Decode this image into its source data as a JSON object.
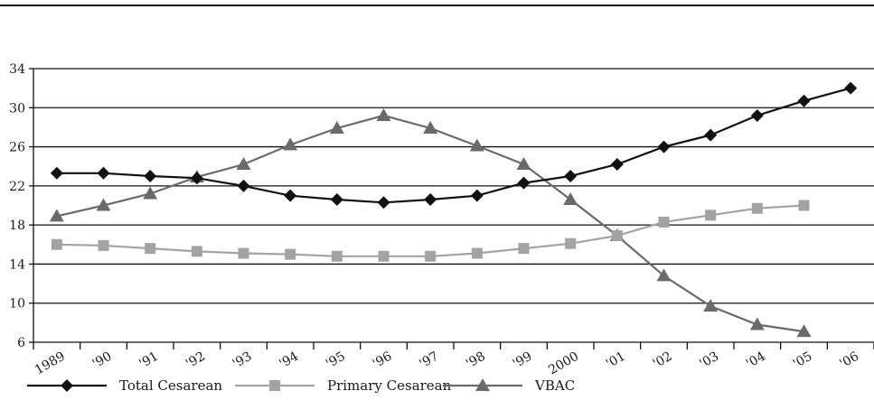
{
  "chart_data": {
    "type": "line",
    "categories": [
      "1989",
      "'90",
      "'91",
      "'92",
      "'93",
      "'94",
      "'95",
      "'96",
      "'97",
      "'98",
      "'99",
      "2000",
      "'01",
      "'02",
      "'03",
      "'04",
      "'05",
      "'06"
    ],
    "series": [
      {
        "name": "Total Cesarean",
        "color": "#111111",
        "marker": "diamond",
        "values": [
          23.3,
          23.3,
          23.0,
          22.8,
          22.0,
          21.0,
          20.6,
          20.3,
          20.6,
          21.0,
          22.3,
          23.0,
          24.2,
          26.0,
          27.2,
          29.2,
          30.7,
          32.0
        ]
      },
      {
        "name": "Primary Cesarean",
        "color": "#a3a3a3",
        "marker": "square",
        "values": [
          16.0,
          15.9,
          15.6,
          15.3,
          15.1,
          15.0,
          14.8,
          14.8,
          14.8,
          15.1,
          15.6,
          16.1,
          16.9,
          18.3,
          19.0,
          19.7,
          20.0,
          null
        ]
      },
      {
        "name": "VBAC",
        "color": "#6a6a6a",
        "marker": "triangle",
        "values": [
          18.9,
          20.0,
          21.2,
          22.9,
          24.2,
          26.2,
          27.9,
          29.2,
          27.9,
          26.1,
          24.2,
          20.6,
          16.9,
          12.8,
          9.7,
          7.8,
          7.1,
          null
        ]
      }
    ],
    "y_ticks": [
      "6",
      "10",
      "14",
      "18",
      "22",
      "26",
      "30",
      "34"
    ],
    "ylim": [
      6,
      34
    ],
    "grid": "horizontal",
    "legend_position": "bottom-left",
    "title": "",
    "xlabel": "",
    "ylabel": ""
  }
}
